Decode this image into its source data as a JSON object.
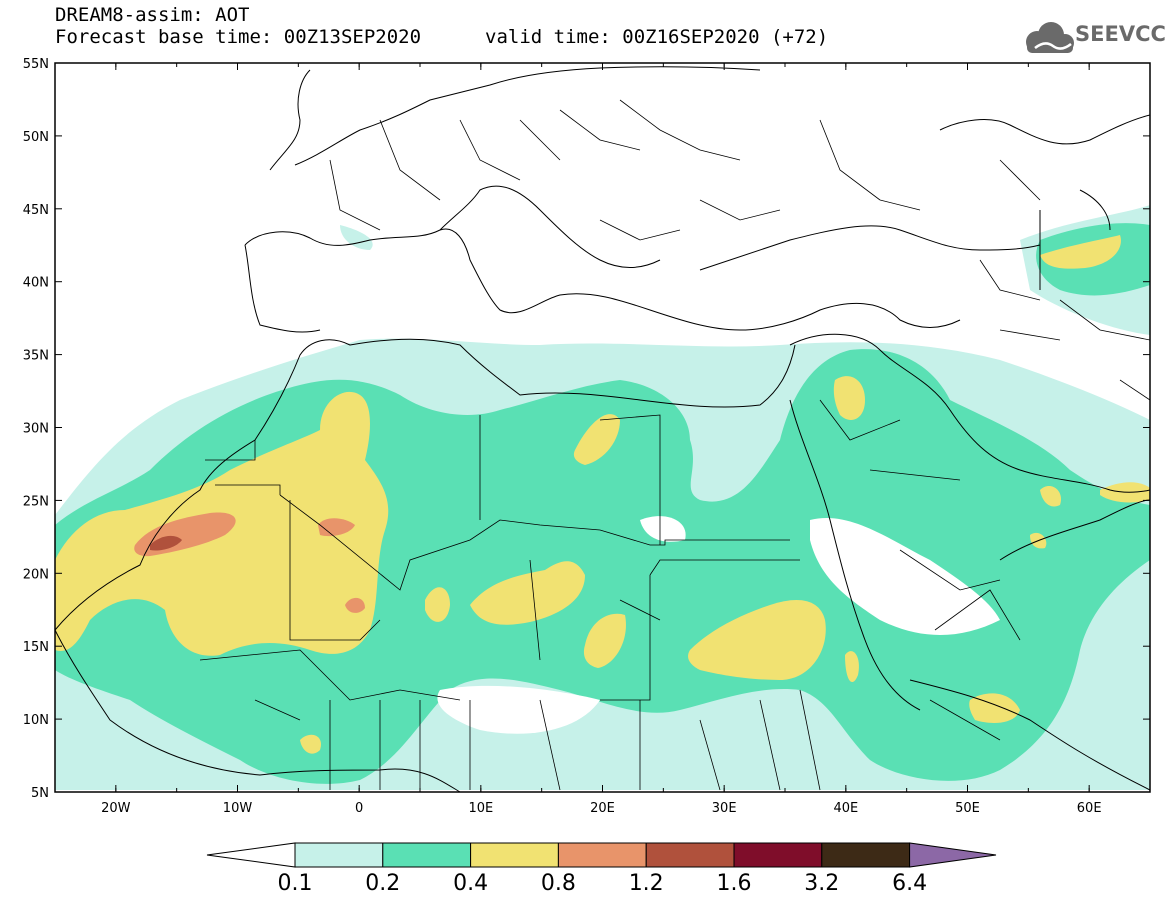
{
  "header": {
    "title_line1": "DREAM8-assim: AOT",
    "title_line2": "Forecast base time: 00Z13SEP2020",
    "valid_time": "valid time: 00Z16SEP2020 (+72)",
    "logo_text": "SEEVCCC"
  },
  "map": {
    "lon_labels": [
      "20W",
      "10W",
      "0",
      "10E",
      "20E",
      "30E",
      "40E",
      "50E",
      "60E"
    ],
    "lat_labels": [
      "55N",
      "50N",
      "45N",
      "40N",
      "35N",
      "30N",
      "25N",
      "20N",
      "15N",
      "10N",
      "5N"
    ],
    "lon_range": [
      -25,
      65
    ],
    "lat_range": [
      5,
      55
    ]
  },
  "colorbar": {
    "levels": [
      "0.1",
      "0.2",
      "0.4",
      "0.8",
      "1.2",
      "1.6",
      "3.2",
      "6.4"
    ],
    "colors": [
      "#ffffff",
      "#c6f1e9",
      "#5ae0b4",
      "#f1e272",
      "#e8946a",
      "#b0513c",
      "#7f0d2a",
      "#3d2a16",
      "#8c68a6"
    ]
  },
  "colors": {
    "aot_0_1": "#c6f1e9",
    "aot_0_2": "#5ae0b4",
    "aot_0_4": "#f1e272",
    "aot_0_8": "#e8946a",
    "aot_1_2": "#b0513c"
  }
}
